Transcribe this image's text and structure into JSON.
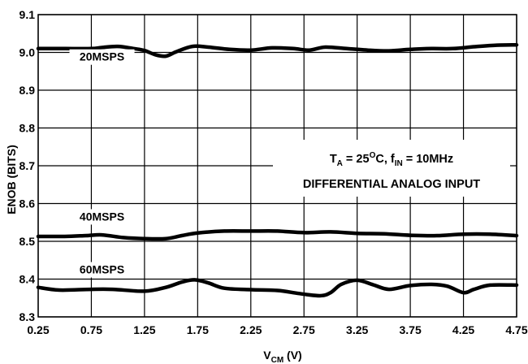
{
  "chart_data": {
    "type": "line",
    "xlabel": {
      "main": "V",
      "sub": "CM",
      "rest": " (V)"
    },
    "ylabel": "ENOB (BITS)",
    "xlim": [
      0.25,
      4.75
    ],
    "ylim": [
      8.3,
      9.1
    ],
    "x_ticks": [
      "0.25",
      "0.75",
      "1.25",
      "1.75",
      "2.25",
      "2.75",
      "3.25",
      "3.75",
      "4.25",
      "4.75"
    ],
    "y_ticks": [
      "8.3",
      "8.4",
      "8.5",
      "8.6",
      "8.7",
      "8.8",
      "8.9",
      "9.0",
      "9.1"
    ],
    "grid": true,
    "line_color": "#000000",
    "series": [
      {
        "name": "20MSPS",
        "points": [
          [
            0.25,
            9.01
          ],
          [
            0.5,
            9.01
          ],
          [
            0.75,
            9.01
          ],
          [
            0.85,
            9.013
          ],
          [
            1.0,
            9.016
          ],
          [
            1.15,
            9.01
          ],
          [
            1.25,
            9.005
          ],
          [
            1.35,
            8.994
          ],
          [
            1.45,
            8.99
          ],
          [
            1.55,
            9.002
          ],
          [
            1.7,
            9.016
          ],
          [
            1.85,
            9.014
          ],
          [
            2.05,
            9.008
          ],
          [
            2.25,
            9.006
          ],
          [
            2.45,
            9.012
          ],
          [
            2.65,
            9.01
          ],
          [
            2.8,
            9.006
          ],
          [
            2.95,
            9.014
          ],
          [
            3.15,
            9.01
          ],
          [
            3.35,
            9.006
          ],
          [
            3.55,
            9.004
          ],
          [
            3.75,
            9.008
          ],
          [
            3.95,
            9.01
          ],
          [
            4.15,
            9.01
          ],
          [
            4.35,
            9.015
          ],
          [
            4.55,
            9.019
          ],
          [
            4.75,
            9.02
          ]
        ]
      },
      {
        "name": "40MSPS",
        "points": [
          [
            0.25,
            8.513
          ],
          [
            0.5,
            8.513
          ],
          [
            0.7,
            8.515
          ],
          [
            0.85,
            8.517
          ],
          [
            1.05,
            8.51
          ],
          [
            1.25,
            8.507
          ],
          [
            1.45,
            8.507
          ],
          [
            1.6,
            8.515
          ],
          [
            1.75,
            8.522
          ],
          [
            2.0,
            8.527
          ],
          [
            2.25,
            8.527
          ],
          [
            2.5,
            8.527
          ],
          [
            2.75,
            8.523
          ],
          [
            3.0,
            8.525
          ],
          [
            3.25,
            8.521
          ],
          [
            3.5,
            8.52
          ],
          [
            3.75,
            8.516
          ],
          [
            4.0,
            8.515
          ],
          [
            4.25,
            8.519
          ],
          [
            4.5,
            8.519
          ],
          [
            4.75,
            8.515
          ]
        ]
      },
      {
        "name": "60MSPS",
        "points": [
          [
            0.25,
            8.378
          ],
          [
            0.45,
            8.371
          ],
          [
            0.75,
            8.373
          ],
          [
            0.95,
            8.373
          ],
          [
            1.25,
            8.368
          ],
          [
            1.45,
            8.378
          ],
          [
            1.6,
            8.392
          ],
          [
            1.72,
            8.398
          ],
          [
            1.85,
            8.39
          ],
          [
            2.0,
            8.376
          ],
          [
            2.25,
            8.372
          ],
          [
            2.5,
            8.37
          ],
          [
            2.7,
            8.362
          ],
          [
            2.9,
            8.356
          ],
          [
            3.0,
            8.364
          ],
          [
            3.1,
            8.386
          ],
          [
            3.25,
            8.397
          ],
          [
            3.4,
            8.385
          ],
          [
            3.55,
            8.373
          ],
          [
            3.75,
            8.383
          ],
          [
            3.95,
            8.386
          ],
          [
            4.1,
            8.381
          ],
          [
            4.25,
            8.364
          ],
          [
            4.35,
            8.373
          ],
          [
            4.5,
            8.384
          ],
          [
            4.75,
            8.384
          ]
        ]
      }
    ],
    "annotation": {
      "line1": {
        "t": "T",
        "t_sub": "A",
        "eq": " = 25",
        "deg": "O",
        "c": "C, f",
        "f_sub": "IN",
        "rest": " = 10MHz"
      },
      "line2": "DIFFERENTIAL ANALOG INPUT"
    }
  }
}
